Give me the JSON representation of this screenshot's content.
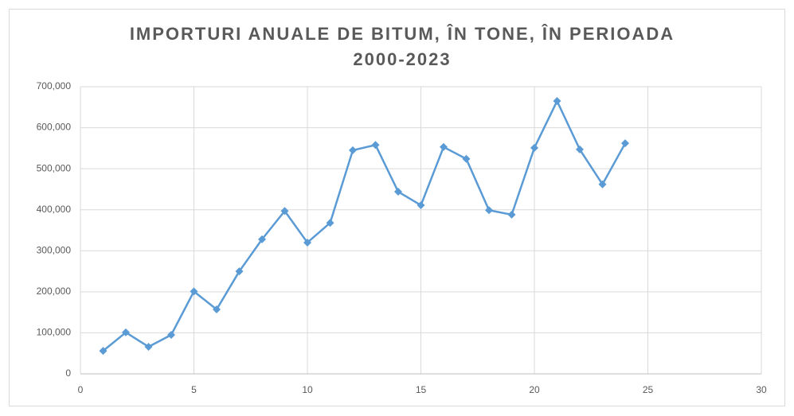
{
  "chart_data": {
    "type": "line",
    "title": "IMPORTURI ANUALE DE BITUM, ÎN TONE, ÎN PERIOADA 2000-2023",
    "x": [
      1,
      2,
      3,
      4,
      5,
      6,
      7,
      8,
      9,
      10,
      11,
      12,
      13,
      14,
      15,
      16,
      17,
      18,
      19,
      20,
      21,
      22,
      23,
      24
    ],
    "series": [
      {
        "color": "#5b9bd5",
        "values": [
          56000,
          101000,
          66000,
          95000,
          201000,
          157000,
          250000,
          328000,
          397000,
          320000,
          368000,
          545000,
          558000,
          444000,
          411000,
          553000,
          524000,
          399000,
          388000,
          551000,
          665000,
          547000,
          462000,
          562000
        ]
      }
    ],
    "xlim": [
      0,
      30
    ],
    "xticks": [
      0,
      5,
      10,
      15,
      20,
      25,
      30
    ],
    "ylim": [
      0,
      700000
    ],
    "yticks": [
      0,
      {
        "value": 100000,
        "label": "100,000"
      },
      {
        "value": 200000,
        "label": "200,000"
      },
      {
        "value": 300000,
        "label": "300,000"
      },
      {
        "value": 400000,
        "label": "400,000"
      },
      {
        "value": 500000,
        "label": "500,000"
      },
      {
        "value": 600000,
        "label": "600,000"
      },
      {
        "value": 700000,
        "label": "700,000"
      }
    ],
    "grid": true,
    "marker": "diamond"
  }
}
